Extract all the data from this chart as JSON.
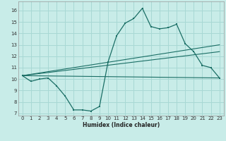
{
  "xlabel": "Humidex (Indice chaleur)",
  "bg_color": "#c8ece8",
  "grid_color": "#a8d8d4",
  "line_color": "#1a6e65",
  "xlim": [
    -0.5,
    23.5
  ],
  "ylim": [
    6.8,
    16.8
  ],
  "xticks": [
    0,
    1,
    2,
    3,
    4,
    5,
    6,
    7,
    8,
    9,
    10,
    11,
    12,
    13,
    14,
    15,
    16,
    17,
    18,
    19,
    20,
    21,
    22,
    23
  ],
  "yticks": [
    7,
    8,
    9,
    10,
    11,
    12,
    13,
    14,
    15,
    16
  ],
  "curve1_x": [
    0,
    1,
    2,
    3,
    4,
    5,
    6,
    7,
    8,
    9,
    10,
    11,
    12,
    13,
    14,
    15,
    16,
    17,
    18,
    19,
    20,
    21,
    22,
    23
  ],
  "curve1_y": [
    10.3,
    9.8,
    10.0,
    10.1,
    9.4,
    8.5,
    7.3,
    7.3,
    7.2,
    7.6,
    11.5,
    13.8,
    14.9,
    15.3,
    16.2,
    14.6,
    14.4,
    14.5,
    14.8,
    13.1,
    12.4,
    11.2,
    11.0,
    10.1
  ],
  "curve2_x": [
    0,
    23
  ],
  "curve2_y": [
    10.3,
    10.1
  ],
  "curve3_x": [
    0,
    23
  ],
  "curve3_y": [
    10.3,
    13.0
  ],
  "curve4_x": [
    0,
    23
  ],
  "curve4_y": [
    10.3,
    12.4
  ]
}
